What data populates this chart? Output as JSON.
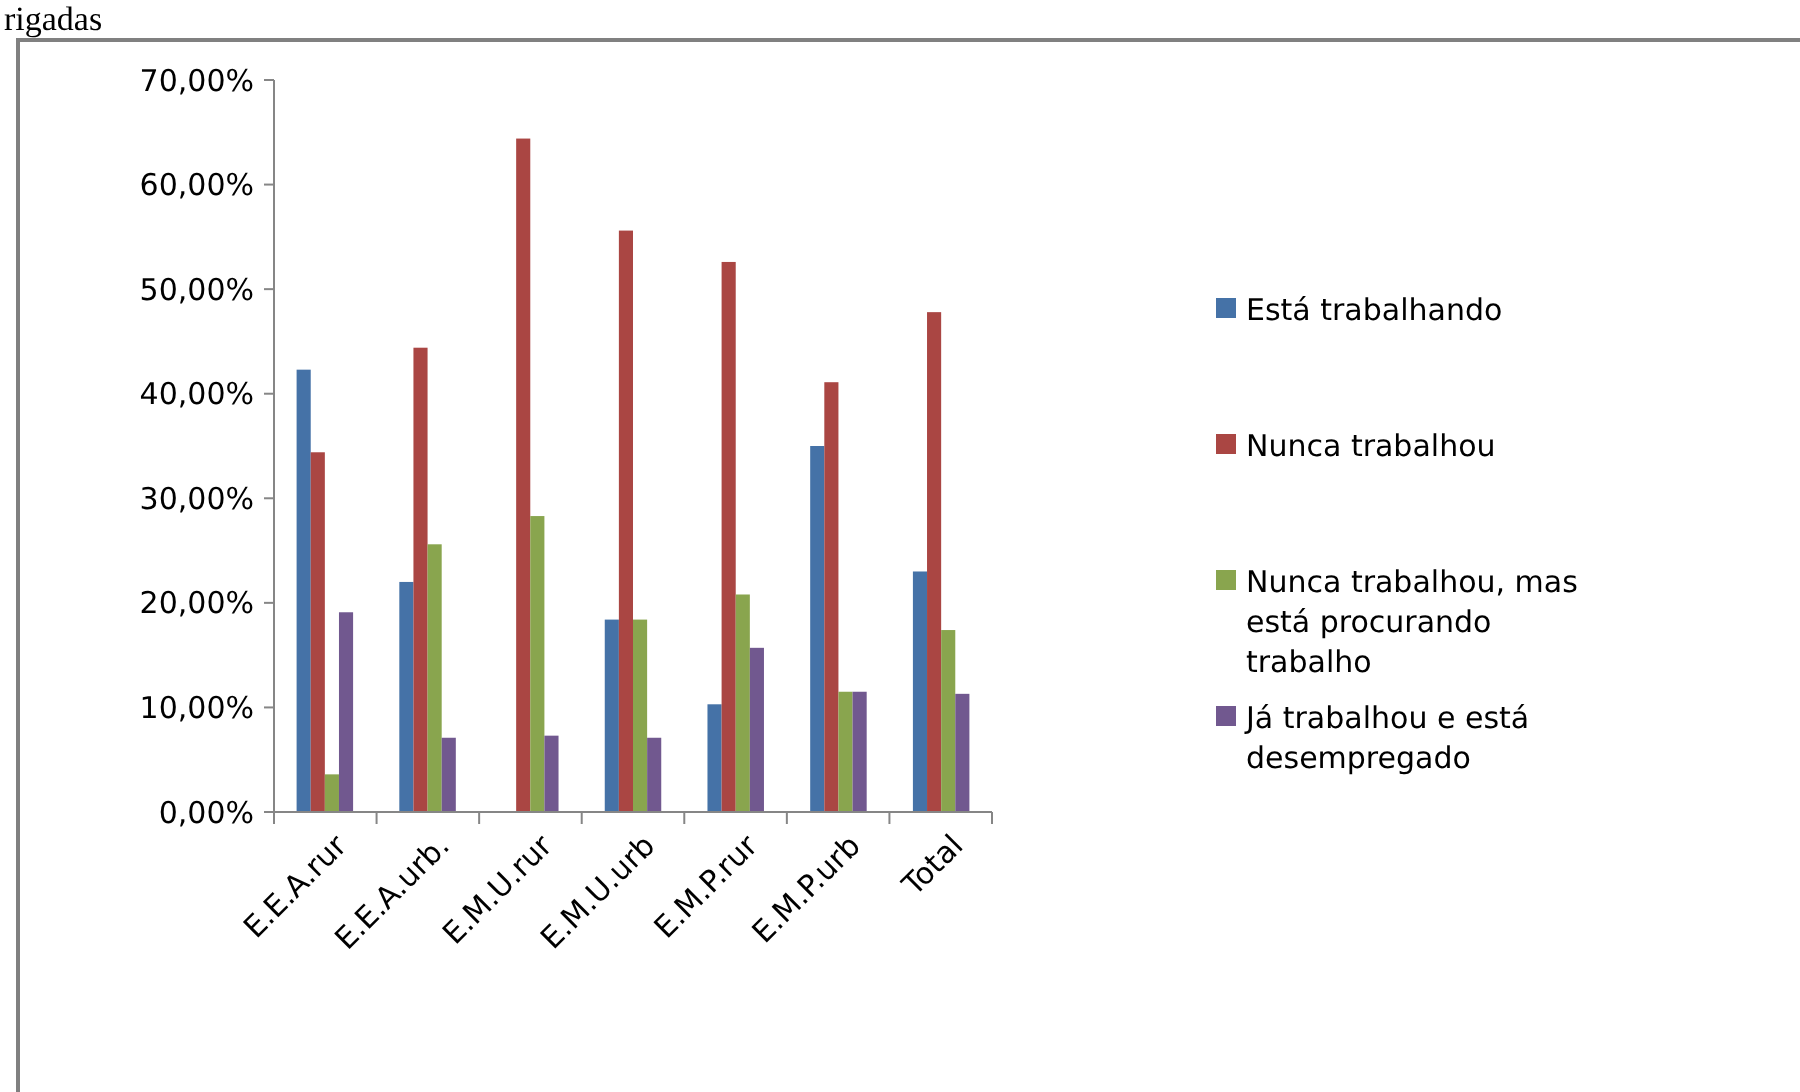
{
  "chart_data": {
    "type": "bar",
    "annotations": [
      "rigadas"
    ],
    "categories": [
      "E.E.A.rur",
      "E.E.A.urb.",
      "E.M.U.rur",
      "E.M.U.urb",
      "E.M.P.rur",
      "E.M.P.urb",
      "Total"
    ],
    "series": [
      {
        "name": "Está trabalhando",
        "color": "#4572a7",
        "values": [
          42.3,
          22.0,
          0,
          18.4,
          10.3,
          35.0,
          23.0
        ]
      },
      {
        "name": "Nunca trabalhou",
        "color": "#aa4643",
        "values": [
          34.4,
          44.4,
          64.4,
          55.6,
          52.6,
          41.1,
          47.8
        ]
      },
      {
        "name": "Nunca trabalhou, mas está procurando trabalho",
        "color": "#89a54e",
        "values": [
          3.6,
          25.6,
          28.3,
          18.4,
          20.8,
          11.5,
          17.4
        ]
      },
      {
        "name": "Já trabalhou e está desempregado",
        "color": "#71588f",
        "values": [
          19.1,
          7.1,
          7.3,
          7.1,
          15.7,
          11.5,
          11.3
        ]
      }
    ],
    "ylim": [
      0,
      70
    ],
    "yticks": [
      {
        "value": 0,
        "label": "0,00%"
      },
      {
        "value": 10,
        "label": "10,00%"
      },
      {
        "value": 20,
        "label": "20,00%"
      },
      {
        "value": 30,
        "label": "30,00%"
      },
      {
        "value": 40,
        "label": "40,00%"
      },
      {
        "value": 50,
        "label": "50,00%"
      },
      {
        "value": 60,
        "label": "60,00%"
      },
      {
        "value": 70,
        "label": "70,00%"
      }
    ],
    "legend": "right",
    "grid": false
  }
}
